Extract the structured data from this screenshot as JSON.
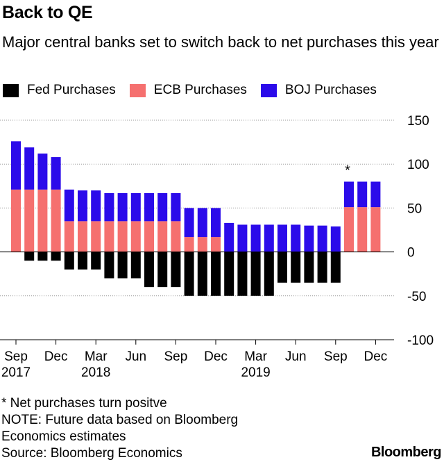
{
  "title": "Back to QE",
  "subtitle": "Major central banks set to switch back to net purchases this year",
  "legend": [
    {
      "label": "Fed Purchases",
      "color": "#000000"
    },
    {
      "label": "ECB Purchases",
      "color": "#f5706f"
    },
    {
      "label": "BOJ Purchases",
      "color": "#2b0bea"
    }
  ],
  "footer": {
    "asterisk_note": "* Net purchases turn positve",
    "note_line1": "NOTE: Future data based on Bloomberg",
    "note_line2": "Economics estimates",
    "source": "Source: Bloomberg Economics"
  },
  "brand": "Bloomberg",
  "chart_data": {
    "type": "bar",
    "stacked": true,
    "categories": [
      "Sep 2017",
      "Oct 2017",
      "Nov 2017",
      "Dec 2017",
      "Jan 2018",
      "Feb 2018",
      "Mar 2018",
      "Apr 2018",
      "May 2018",
      "Jun 2018",
      "Jul 2018",
      "Aug 2018",
      "Sep 2018",
      "Oct 2018",
      "Nov 2018",
      "Dec 2018",
      "Jan 2019",
      "Feb 2019",
      "Mar 2019",
      "Apr 2019",
      "May 2019",
      "Jun 2019",
      "Jul 2019",
      "Aug 2019",
      "Sep 2019",
      "Oct 2019",
      "Nov 2019",
      "Dec 2019"
    ],
    "series": [
      {
        "name": "Fed Purchases",
        "color": "#000000",
        "values": [
          0,
          -10,
          -10,
          -10,
          -20,
          -20,
          -20,
          -30,
          -30,
          -30,
          -40,
          -40,
          -40,
          -50,
          -50,
          -50,
          -50,
          -50,
          -50,
          -50,
          -35,
          -35,
          -35,
          -35,
          -35,
          0,
          0,
          0
        ]
      },
      {
        "name": "ECB Purchases",
        "color": "#f5706f",
        "values": [
          71,
          71,
          71,
          71,
          35,
          35,
          35,
          35,
          35,
          35,
          35,
          35,
          35,
          17,
          17,
          17,
          0,
          0,
          0,
          0,
          0,
          0,
          0,
          0,
          0,
          51,
          51,
          51
        ]
      },
      {
        "name": "BOJ Purchases",
        "color": "#2b0bea",
        "values": [
          55,
          48,
          41,
          37,
          36,
          35,
          35,
          32,
          32,
          32,
          32,
          32,
          32,
          33,
          33,
          33,
          33,
          31,
          31,
          31,
          31,
          31,
          30,
          30,
          29,
          29,
          29,
          29
        ]
      }
    ],
    "ylim": [
      -100,
      150
    ],
    "yticks": [
      150,
      100,
      50,
      0,
      -50,
      -100
    ],
    "y_axis_side": "right",
    "x_tick_labels": [
      {
        "index": 0,
        "month": "Sep",
        "year": "2017"
      },
      {
        "index": 3,
        "month": "Dec",
        "year": ""
      },
      {
        "index": 6,
        "month": "Mar",
        "year": "2018"
      },
      {
        "index": 9,
        "month": "Jun",
        "year": ""
      },
      {
        "index": 12,
        "month": "Sep",
        "year": ""
      },
      {
        "index": 15,
        "month": "Dec",
        "year": ""
      },
      {
        "index": 18,
        "month": "Mar",
        "year": "2019"
      },
      {
        "index": 21,
        "month": "Jun",
        "year": ""
      },
      {
        "index": 24,
        "month": "Sep",
        "year": ""
      },
      {
        "index": 27,
        "month": "Dec",
        "year": ""
      }
    ],
    "annotations": [
      {
        "index": 25,
        "text": "*"
      }
    ],
    "grid": "horizontal-dotted"
  }
}
